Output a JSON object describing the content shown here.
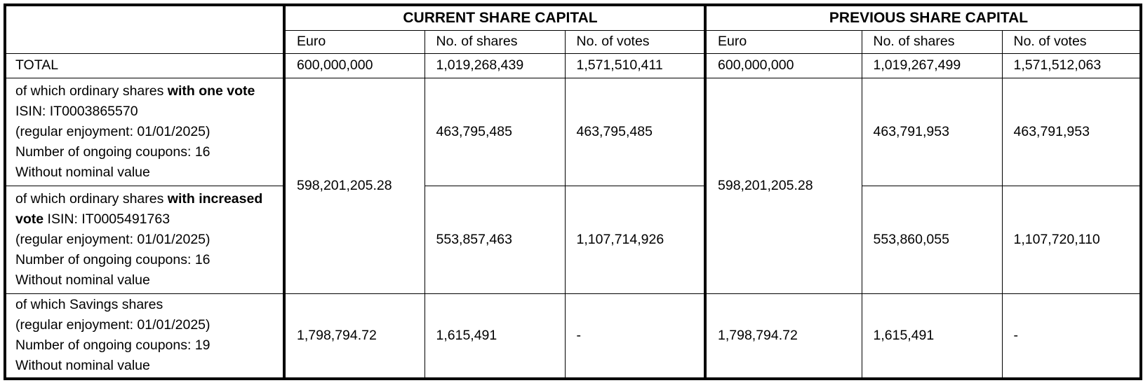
{
  "table": {
    "header": {
      "current": {
        "title": "CURRENT SHARE CAPITAL",
        "columns": [
          "Euro",
          "No. of shares",
          "No. of votes"
        ]
      },
      "previous": {
        "title": "PREVIOUS SHARE CAPITAL",
        "columns": [
          "Euro",
          "No. of shares",
          "No. of votes"
        ]
      }
    },
    "total": {
      "label": "TOTAL",
      "current": [
        "600,000,000",
        "1,019,268,439",
        "1,571,510,411"
      ],
      "previous": [
        "600,000,000",
        "1,019,267,499",
        "1,571,512,063"
      ]
    },
    "ordinary": {
      "current_euro": "598,201,205.28",
      "previous_euro": "598,201,205.28",
      "rows": [
        {
          "label": [
            {
              "text": "of which ordinary shares "
            },
            {
              "text": "with one vote",
              "bold": true
            },
            {
              "text": " ISIN: IT0003865570"
            }
          ],
          "details": [
            "(regular enjoyment: 01/01/2025)",
            "Number of ongoing coupons: 16",
            "Without nominal value"
          ],
          "current": [
            "463,795,485",
            "463,795,485"
          ],
          "previous": [
            "463,791,953",
            "463,791,953"
          ]
        },
        {
          "label": [
            {
              "text": "of which ordinary shares "
            },
            {
              "text": "with increased vote",
              "bold": true
            },
            {
              "text": " ISIN: IT0005491763"
            }
          ],
          "details": [
            "(regular enjoyment: 01/01/2025)",
            "Number of ongoing coupons: 16",
            "Without nominal value"
          ],
          "current": [
            "553,857,463",
            "1,107,714,926"
          ],
          "previous": [
            "553,860,055",
            "1,107,720,110"
          ]
        }
      ]
    },
    "savings": {
      "label": "of which Savings shares",
      "details": [
        "(regular enjoyment: 01/01/2025)",
        "Number of ongoing coupons: 19",
        "Without nominal value"
      ],
      "current": [
        "1,798,794.72",
        "1,615,491",
        "-"
      ],
      "previous": [
        "1,798,794.72",
        "1,615,491",
        "-"
      ]
    }
  }
}
